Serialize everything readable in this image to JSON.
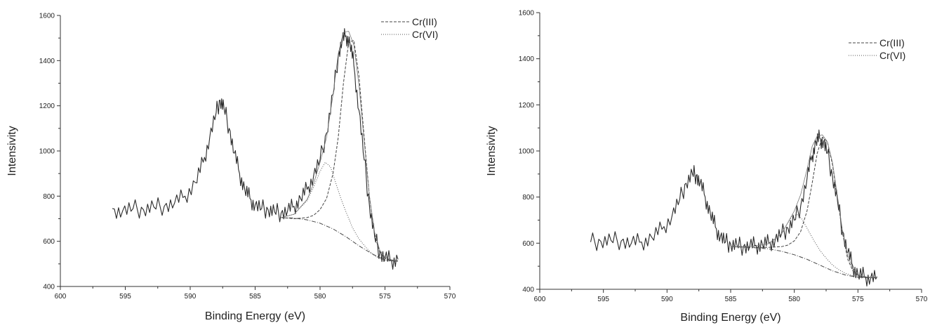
{
  "chart_data": [
    {
      "type": "line",
      "xlabel": "Binding Energy (eV)",
      "ylabel": "Intensivity",
      "xlim": [
        600,
        570
      ],
      "ylim": [
        400,
        1600
      ],
      "x_ticks": [
        "600",
        "595",
        "590",
        "585",
        "580",
        "575",
        "570"
      ],
      "y_ticks": [
        "400",
        "600",
        "800",
        "1000",
        "1200",
        "1400",
        "1600"
      ],
      "legend_position": "top-right",
      "legend": [
        {
          "label": "Cr(III)",
          "style": "dashed"
        },
        {
          "label": "Cr(VI)",
          "style": "dotted"
        }
      ],
      "series": [
        {
          "name": "",
          "style": "solid-noisy",
          "x": [
            596,
            595.2,
            594.4,
            593.6,
            592.8,
            592,
            591.2,
            590.4,
            589.6,
            589,
            588.5,
            588,
            587.7,
            587.4,
            587,
            586.6,
            586.2,
            585.8,
            585.4,
            585,
            584.5,
            584,
            583.5,
            583,
            582.5,
            582,
            581.5,
            581,
            580.5,
            580,
            579.5,
            579,
            578.6,
            578.3,
            578,
            577.7,
            577.4,
            577,
            576.6,
            576.2,
            575.8,
            575.4,
            575,
            574.5,
            574
          ],
          "y": [
            745,
            735,
            745,
            740,
            752,
            755,
            770,
            800,
            860,
            950,
            1060,
            1170,
            1225,
            1190,
            1100,
            990,
            900,
            830,
            790,
            760,
            745,
            740,
            730,
            725,
            735,
            755,
            790,
            830,
            890,
            960,
            1080,
            1250,
            1420,
            1490,
            1510,
            1480,
            1380,
            1180,
            960,
            760,
            620,
            550,
            525,
            515,
            520
          ]
        },
        {
          "name": "Cr(III)",
          "style": "dashed",
          "x": [
            583,
            582,
            581,
            580.5,
            580,
            579.5,
            579,
            578.6,
            578.2,
            577.8,
            577.4,
            577,
            576.6,
            576.2,
            575.8,
            575.4,
            575,
            574.5,
            574
          ],
          "y": [
            705,
            700,
            705,
            715,
            740,
            790,
            900,
            1060,
            1300,
            1480,
            1490,
            1330,
            1060,
            800,
            630,
            550,
            525,
            515,
            512
          ]
        },
        {
          "name": "Cr(VI)",
          "style": "dotted",
          "x": [
            583,
            582,
            581,
            580.5,
            580,
            579.6,
            579.2,
            578.8,
            578.4,
            578,
            577.5,
            577,
            576.5,
            576,
            575.5,
            575,
            574.5,
            574
          ],
          "y": [
            705,
            720,
            780,
            840,
            910,
            950,
            930,
            860,
            790,
            730,
            660,
            610,
            575,
            545,
            525,
            515,
            512,
            512
          ]
        },
        {
          "name": "",
          "style": "dash-dot",
          "x": [
            583,
            582,
            581,
            580,
            579,
            578,
            577,
            576,
            575.5,
            575,
            574.5,
            574
          ],
          "y": [
            705,
            703,
            695,
            680,
            655,
            620,
            580,
            545,
            530,
            518,
            513,
            512
          ]
        },
        {
          "name": "",
          "style": "thin-envelope",
          "x": [
            583,
            582,
            581,
            580.5,
            580,
            579.5,
            579,
            578.6,
            578.2,
            577.8,
            577.4,
            577,
            576.6,
            576.2,
            575.8,
            575.4,
            575,
            574.5,
            574
          ],
          "y": [
            705,
            720,
            785,
            855,
            950,
            1060,
            1250,
            1430,
            1525,
            1530,
            1470,
            1290,
            1040,
            800,
            640,
            560,
            530,
            518,
            515
          ]
        }
      ]
    },
    {
      "type": "line",
      "xlabel": "Binding Energy (eV)",
      "ylabel": "Intensivity",
      "xlim": [
        600,
        570
      ],
      "ylim": [
        400,
        1600
      ],
      "x_ticks": [
        "600",
        "595",
        "590",
        "585",
        "580",
        "575",
        "570"
      ],
      "y_ticks": [
        "400",
        "600",
        "800",
        "1000",
        "1200",
        "1400",
        "1600"
      ],
      "legend_position": "top-right",
      "legend": [
        {
          "label": "Cr(III)",
          "style": "dashed"
        },
        {
          "label": "Cr(VI)",
          "style": "dotted"
        }
      ],
      "series": [
        {
          "name": "",
          "style": "solid-noisy",
          "x": [
            596,
            595.2,
            594.4,
            593.6,
            592.8,
            592,
            591.2,
            590.4,
            589.6,
            589,
            588.5,
            588,
            587.7,
            587.4,
            587,
            586.6,
            586.2,
            585.8,
            585.4,
            585,
            584.5,
            584,
            583.5,
            583,
            582.5,
            582,
            581.5,
            581,
            580.5,
            580,
            579.5,
            579,
            578.6,
            578.3,
            578,
            577.7,
            577.4,
            577,
            576.6,
            576.2,
            575.8,
            575.4,
            575,
            574.5,
            574,
            573.5
          ],
          "y": [
            605,
            608,
            612,
            610,
            600,
            605,
            625,
            660,
            720,
            790,
            860,
            900,
            895,
            860,
            800,
            730,
            670,
            630,
            605,
            595,
            590,
            585,
            588,
            590,
            595,
            600,
            615,
            640,
            665,
            700,
            760,
            880,
            980,
            1040,
            1055,
            1040,
            990,
            890,
            780,
            650,
            560,
            500,
            465,
            455,
            450,
            455
          ]
        },
        {
          "name": "Cr(III)",
          "style": "dashed",
          "x": [
            585,
            584,
            583,
            582,
            581,
            580.5,
            580,
            579.5,
            579,
            578.6,
            578.2,
            577.8,
            577.4,
            577,
            576.6,
            576.2,
            575.8,
            575.4,
            575,
            574.5,
            574,
            573.5
          ],
          "y": [
            585,
            583,
            582,
            582,
            585,
            592,
            610,
            650,
            740,
            860,
            990,
            1060,
            1040,
            940,
            790,
            640,
            530,
            480,
            460,
            452,
            450,
            450
          ]
        },
        {
          "name": "Cr(VI)",
          "style": "dotted",
          "x": [
            585,
            584,
            583,
            582,
            581,
            580.6,
            580.2,
            579.8,
            579.4,
            579,
            578.5,
            578,
            577.5,
            577,
            576.5,
            576,
            575.5,
            575,
            574.5,
            574,
            573.5
          ],
          "y": [
            585,
            586,
            590,
            600,
            640,
            680,
            715,
            725,
            705,
            665,
            615,
            570,
            535,
            505,
            485,
            470,
            460,
            455,
            452,
            450,
            450
          ]
        },
        {
          "name": "",
          "style": "dash-dot",
          "x": [
            585,
            584,
            583,
            582,
            581,
            580,
            579,
            578,
            577,
            576,
            575,
            574.5,
            574,
            573.5
          ],
          "y": [
            585,
            583,
            580,
            575,
            565,
            550,
            530,
            505,
            480,
            462,
            452,
            450,
            450,
            450
          ]
        },
        {
          "name": "",
          "style": "thin-envelope",
          "x": [
            585,
            584,
            583,
            582,
            581,
            580.5,
            580,
            579.5,
            579,
            578.6,
            578.2,
            577.8,
            577.4,
            577,
            576.6,
            576.2,
            575.8,
            575.4,
            575,
            574.5,
            574,
            573.5
          ],
          "y": [
            585,
            585,
            588,
            598,
            640,
            690,
            740,
            810,
            920,
            1020,
            1065,
            1070,
            1040,
            950,
            800,
            650,
            545,
            490,
            465,
            455,
            452,
            452
          ]
        }
      ]
    }
  ]
}
